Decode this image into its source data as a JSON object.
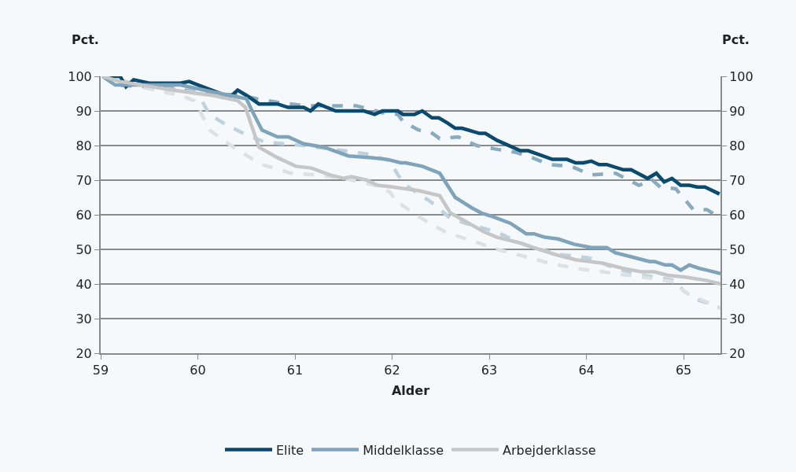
{
  "chart_data": {
    "type": "line",
    "xlabel": "Alder",
    "ylabel": "Pct.",
    "y2label": "Pct.",
    "xlim": [
      59,
      65.38
    ],
    "xticks": [
      59,
      60,
      61,
      62,
      63,
      64,
      65
    ],
    "ylim": [
      20,
      100
    ],
    "yticks": [
      20,
      30,
      40,
      50,
      60,
      70,
      80,
      90,
      100
    ],
    "y2lim": [
      20,
      100
    ],
    "y2ticks": [
      20,
      30,
      40,
      50,
      60,
      70,
      80,
      90,
      100
    ],
    "grid": "y",
    "legend": "bottom",
    "marker": "none",
    "series": [
      {
        "name": "Elite",
        "color": "#0b4a6f",
        "line_style": "solid",
        "x": [
          59.02,
          59.2,
          59.26,
          59.34,
          59.5,
          59.82,
          59.91,
          60.33,
          60.41,
          60.5,
          60.63,
          60.82,
          60.93,
          61.09,
          61.16,
          61.24,
          61.42,
          61.71,
          61.82,
          61.9,
          62.06,
          62.11,
          62.23,
          62.31,
          62.41,
          62.48,
          62.57,
          62.65,
          62.72,
          62.9,
          62.96,
          63.08,
          63.32,
          63.4,
          63.65,
          63.8,
          63.89,
          63.97,
          64.05,
          64.13,
          64.21,
          64.38,
          64.46,
          64.63,
          64.72,
          64.8,
          64.88,
          64.97,
          65.06,
          65.14,
          65.22,
          65.37
        ],
        "values": [
          100,
          100,
          97,
          99,
          98,
          98,
          98.5,
          94,
          96,
          94.5,
          92,
          92,
          91,
          91,
          90,
          92,
          90,
          90,
          89,
          90,
          90,
          89,
          89,
          90,
          88,
          88,
          86.5,
          85,
          85,
          83.5,
          83.5,
          81.5,
          78.5,
          78.5,
          76,
          76,
          75,
          75,
          75.5,
          74.5,
          74.5,
          73,
          73,
          70.5,
          72,
          69.5,
          70.5,
          68.5,
          68.5,
          68,
          68,
          66
        ]
      },
      {
        "name": "Middelklasse",
        "color": "#7fa3ba",
        "line_style": "solid",
        "x": [
          59.02,
          59.15,
          59.48,
          59.82,
          60.15,
          60.5,
          60.55,
          60.66,
          60.82,
          60.93,
          61.09,
          61.3,
          61.55,
          61.79,
          61.95,
          62.09,
          62.14,
          62.31,
          62.49,
          62.65,
          62.82,
          62.92,
          63.03,
          63.22,
          63.38,
          63.46,
          63.57,
          63.71,
          63.87,
          64.05,
          64.21,
          64.3,
          64.51,
          64.65,
          64.7,
          64.81,
          64.88,
          64.97,
          65.06,
          65.16,
          65.24,
          65.38
        ],
        "values": [
          100,
          97.5,
          97.5,
          97.5,
          95.5,
          93.5,
          90.5,
          84.5,
          82.5,
          82.5,
          80.5,
          79.5,
          77,
          76.5,
          76,
          75,
          75,
          74,
          72,
          65,
          62,
          60.5,
          59.5,
          57.5,
          54.5,
          54.5,
          53.5,
          53,
          51.5,
          50.5,
          50.5,
          49,
          47.5,
          46.5,
          46.5,
          45.5,
          45.5,
          44,
          45.5,
          44.5,
          44,
          43
        ]
      },
      {
        "name": "Arbejderklasse",
        "color": "#c6c6c6",
        "line_style": "solid",
        "x": [
          59.02,
          59.2,
          59.74,
          60.15,
          60.41,
          60.49,
          60.55,
          60.63,
          60.82,
          61.01,
          61.17,
          61.36,
          61.5,
          61.58,
          61.74,
          61.85,
          62.01,
          62.27,
          62.49,
          62.6,
          62.76,
          62.95,
          63.08,
          63.3,
          63.46,
          63.68,
          63.89,
          64.17,
          64.38,
          64.57,
          64.7,
          64.84,
          65.02,
          65.24,
          65.38
        ],
        "values": [
          100,
          98.5,
          96,
          94.5,
          93,
          91,
          86,
          79.5,
          76.5,
          74,
          73.5,
          71.5,
          70.5,
          71,
          70,
          68.5,
          68,
          67,
          65.5,
          60.5,
          58,
          55,
          53.5,
          52,
          50.5,
          48.5,
          47,
          46,
          44.5,
          43.5,
          43.5,
          42.5,
          42,
          41,
          40
        ]
      },
      {
        "color": "#8aaabd",
        "line_style": "dashed",
        "x": [
          59.02,
          59.15,
          59.74,
          60.15,
          60.45,
          60.61,
          60.82,
          61.09,
          61.36,
          61.63,
          61.9,
          62.06,
          62.11,
          62.27,
          62.39,
          62.49,
          62.68,
          62.87,
          63.06,
          63.28,
          63.44,
          63.62,
          63.84,
          64.05,
          64.3,
          64.54,
          64.68,
          64.76,
          64.92,
          65.1,
          65.24,
          65.38
        ],
        "values": [
          100,
          97.5,
          96.5,
          95,
          94.5,
          93.5,
          92.5,
          91.5,
          91.5,
          91.5,
          89.5,
          89,
          87,
          84.5,
          84,
          82,
          82.5,
          80,
          79,
          78,
          76.5,
          74.5,
          74,
          71.5,
          72,
          68.5,
          70,
          68,
          67.5,
          61.5,
          61.5,
          59
        ]
      },
      {
        "color": "#bcd3df",
        "line_style": "dashed",
        "x": [
          59.02,
          59.48,
          59.96,
          60.04,
          60.12,
          60.29,
          60.47,
          60.69,
          61.09,
          61.5,
          61.76,
          61.98,
          62.06,
          62.17,
          62.41,
          62.6,
          62.76,
          63.08,
          63.3,
          63.52,
          63.73,
          64.03,
          64.3,
          64.57,
          64.81,
          64.92,
          65.0,
          65.14,
          65.3,
          65.38
        ],
        "values": [
          100,
          97,
          95.5,
          93,
          89,
          86,
          83.5,
          81,
          80,
          78.5,
          77.5,
          75.5,
          71.5,
          68,
          63.5,
          59,
          57.5,
          55,
          52,
          50,
          48.5,
          47.5,
          44.5,
          42.5,
          41.5,
          41,
          38,
          35.5,
          34,
          33
        ]
      },
      {
        "color": "#dde1e4",
        "line_style": "dashed",
        "x": [
          59.02,
          59.48,
          59.82,
          59.96,
          60.04,
          60.12,
          60.29,
          60.45,
          60.66,
          60.96,
          61.22,
          61.5,
          61.82,
          61.98,
          62.06,
          62.09,
          62.27,
          62.55,
          62.82,
          63.08,
          63.36,
          63.62,
          63.89,
          64.17,
          64.43,
          64.7,
          64.92,
          65.02,
          65.18,
          65.38
        ],
        "values": [
          100,
          96.5,
          94.5,
          93,
          89,
          84.5,
          81,
          78,
          74.5,
          72,
          71.5,
          70.5,
          68.5,
          66.5,
          63,
          63,
          59.5,
          55,
          52.5,
          50,
          48,
          46,
          44.5,
          43.5,
          42.5,
          41.5,
          40.5,
          37.5,
          35.5,
          33
        ]
      }
    ]
  }
}
